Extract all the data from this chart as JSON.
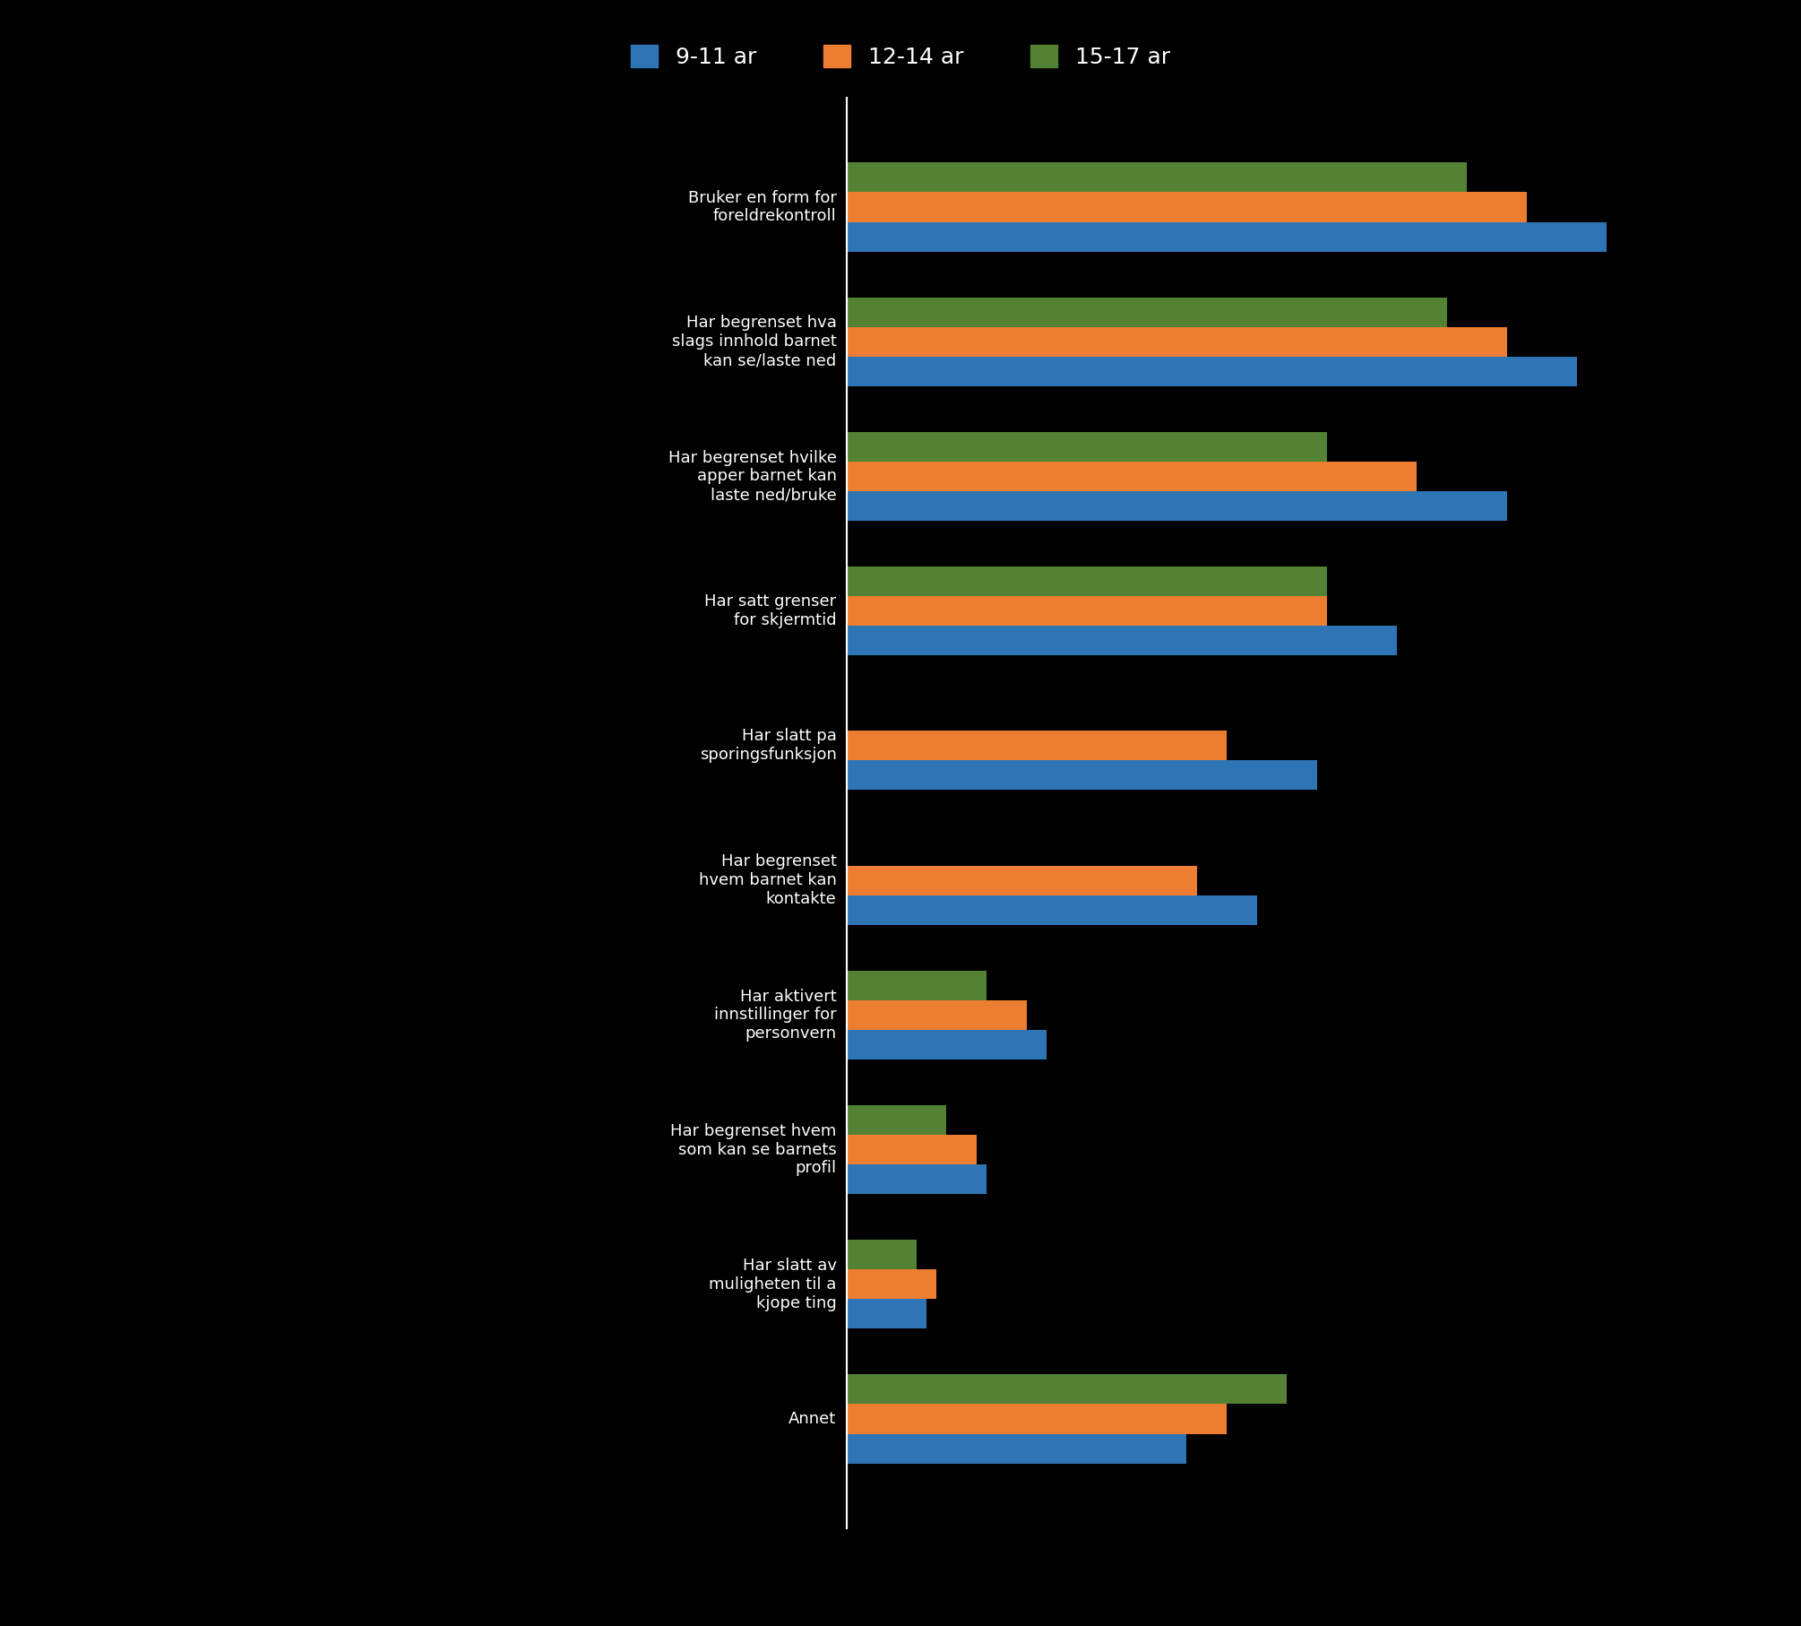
{
  "categories": [
    "Bruker en form for\nforeldrekontroll",
    "Har begrenset hva\nslags innhold barnet\nkan se/laste ned",
    "Har begrenset hvilke\napper barnet kan\nlaste ned/bruke",
    "Har satt grenser\nfor skjermtid",
    "Har slatt pa\nsporingsfunksjon",
    "Har begrenset\nhvem barnet kan\nkontakte",
    "Har aktivert\ninnstillinger for\npersonvern",
    "Har begrenset hvem\nsom kan se barnets\nprofil",
    "Har slatt av\nmuligheten til a\nkjope ting",
    "Annet"
  ],
  "blue_values": [
    76,
    73,
    66,
    55,
    47,
    41,
    20,
    14,
    8,
    34
  ],
  "orange_values": [
    68,
    66,
    57,
    48,
    38,
    35,
    18,
    13,
    9,
    38
  ],
  "green_values": [
    62,
    60,
    48,
    48,
    0,
    0,
    14,
    10,
    7,
    44
  ],
  "blue_color": "#2E75B6",
  "orange_color": "#ED7D31",
  "green_color": "#548235",
  "legend_labels": [
    "9-11 ar",
    "12-14 ar",
    "15-17 ar"
  ],
  "background_color": "#000000",
  "bar_height": 0.22,
  "xlim": [
    0,
    90
  ],
  "title": ""
}
